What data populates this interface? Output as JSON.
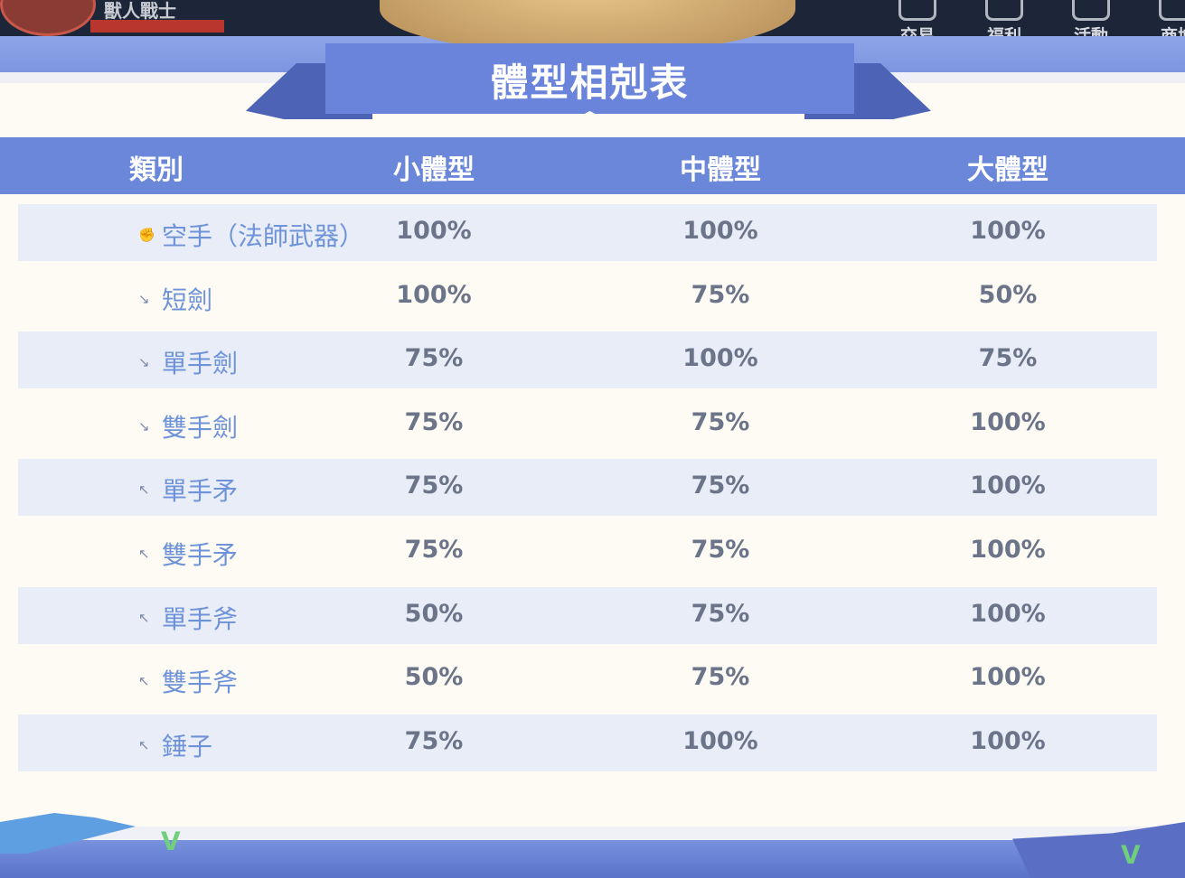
{
  "top_bar": {
    "player_name": "獸人戰士",
    "nav": [
      {
        "label": "交易",
        "icon": "trade-icon"
      },
      {
        "label": "福利",
        "icon": "welfare-icon"
      },
      {
        "label": "活動",
        "icon": "event-icon"
      },
      {
        "label": "商城",
        "icon": "shop-icon"
      }
    ]
  },
  "panel": {
    "title": "體型相剋表",
    "columns": [
      "類別",
      "小體型",
      "中體型",
      "大體型"
    ],
    "rows": [
      {
        "icon": "fist-icon",
        "name": "空手（法師武器）",
        "small": "100%",
        "medium": "100%",
        "large": "100%"
      },
      {
        "icon": "dagger-icon",
        "name": "短劍",
        "small": "100%",
        "medium": "75%",
        "large": "50%"
      },
      {
        "icon": "one-hand-sword-icon",
        "name": "單手劍",
        "small": "75%",
        "medium": "100%",
        "large": "75%"
      },
      {
        "icon": "two-hand-sword-icon",
        "name": "雙手劍",
        "small": "75%",
        "medium": "75%",
        "large": "100%"
      },
      {
        "icon": "one-hand-spear-icon",
        "name": "單手矛",
        "small": "75%",
        "medium": "75%",
        "large": "100%"
      },
      {
        "icon": "two-hand-spear-icon",
        "name": "雙手矛",
        "small": "75%",
        "medium": "75%",
        "large": "100%"
      },
      {
        "icon": "one-hand-axe-icon",
        "name": "單手斧",
        "small": "50%",
        "medium": "75%",
        "large": "100%"
      },
      {
        "icon": "two-hand-axe-icon",
        "name": "雙手斧",
        "small": "50%",
        "medium": "75%",
        "large": "100%"
      },
      {
        "icon": "mace-icon",
        "name": "錘子",
        "small": "75%",
        "medium": "100%",
        "large": "100%"
      }
    ]
  },
  "colors": {
    "header": "#6b87da",
    "name_text": "#6f93d8",
    "value_text": "#6b7488",
    "alt_row": "#e8edf7",
    "panel_bg": "#fdfbf4"
  }
}
